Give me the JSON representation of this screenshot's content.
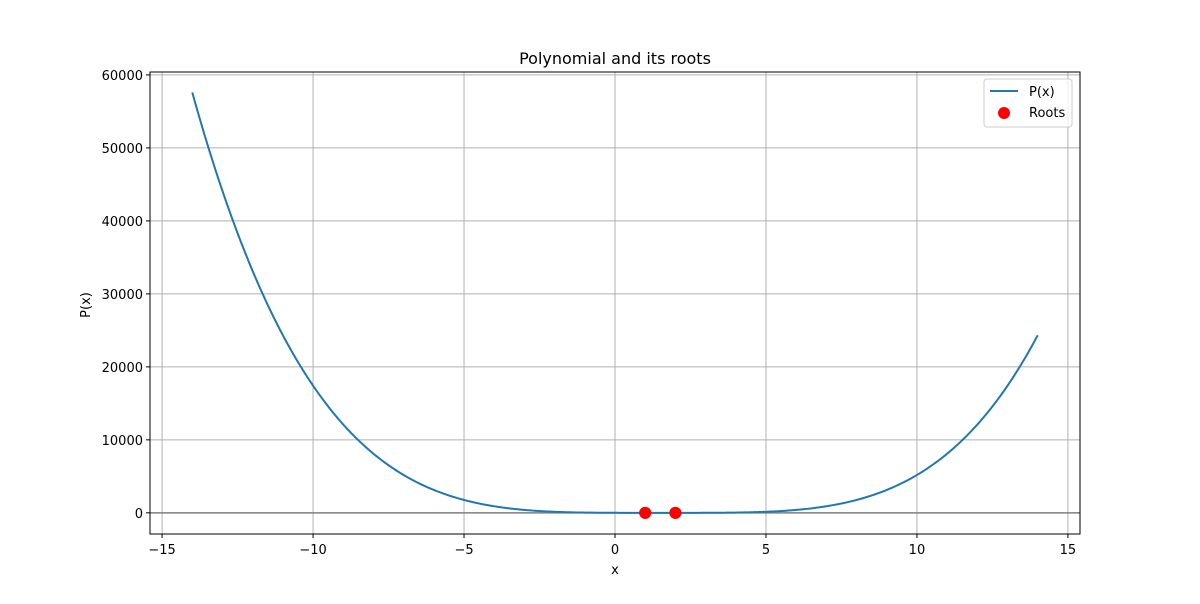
{
  "chart_data": {
    "type": "line",
    "title": "Polynomial and its roots",
    "xlabel": "x",
    "ylabel": "P(x)",
    "xlim": [
      -15.4,
      15.4
    ],
    "ylim": [
      -2900,
      60400
    ],
    "x_ticks": [
      -15,
      -10,
      -5,
      0,
      5,
      10,
      15
    ],
    "x_tick_labels": [
      "−15",
      "−10",
      "−5",
      "0",
      "5",
      "10",
      "15"
    ],
    "y_ticks": [
      0,
      10000,
      20000,
      30000,
      40000,
      50000,
      60000
    ],
    "y_tick_labels": [
      "0",
      "10000",
      "20000",
      "30000",
      "40000",
      "50000",
      "60000"
    ],
    "grid": true,
    "reference_line": {
      "y": 0,
      "color": "#808080"
    },
    "legend_position": "top-right",
    "series": [
      {
        "name": "P(x)",
        "kind": "line",
        "color": "#1f77b4",
        "x_range": [
          -14,
          14
        ],
        "polynomial_roots": [
          1,
          1,
          2,
          2
        ],
        "sample_points": [
          {
            "x": -14,
            "y": 57600
          },
          {
            "x": -10,
            "y": 17424
          },
          {
            "x": -5,
            "y": 1764
          },
          {
            "x": 0,
            "y": 4
          },
          {
            "x": 5,
            "y": 144
          },
          {
            "x": 10,
            "y": 5184
          },
          {
            "x": 14,
            "y": 24336
          }
        ]
      },
      {
        "name": "Roots",
        "kind": "scatter",
        "color": "#ff0000",
        "points": [
          {
            "x": 1,
            "y": 0
          },
          {
            "x": 1,
            "y": 0
          },
          {
            "x": 2,
            "y": 0
          },
          {
            "x": 2,
            "y": 0
          }
        ]
      }
    ]
  }
}
